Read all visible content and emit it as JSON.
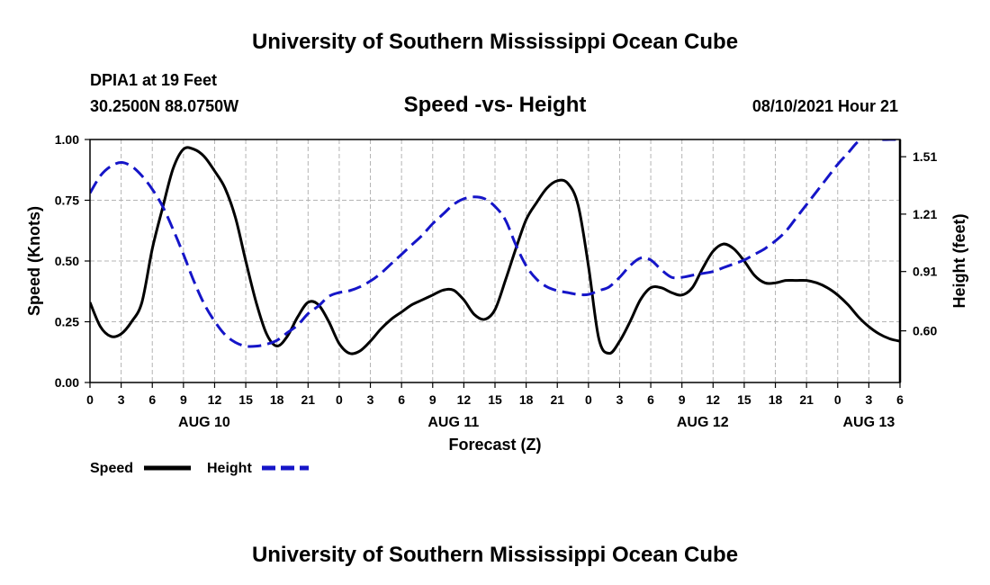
{
  "header": {
    "title": "University of Southern Mississippi Ocean Cube",
    "station": "DPIA1 at 19 Feet",
    "location": "30.2500N  88.0750W",
    "subtitle": "Speed -vs- Height",
    "datetime": "08/10/2021 Hour 21"
  },
  "footer": {
    "title": "University of Southern Mississippi Ocean Cube"
  },
  "legend": {
    "speed_label": "Speed",
    "height_label": "Height"
  },
  "colors": {
    "speed": "#000000",
    "height": "#1515c8",
    "grid": "#b4b4b4"
  },
  "chart_data": {
    "type": "line",
    "title": "Speed -vs- Height",
    "xlabel": "Forecast (Z)",
    "ylabel": "Speed (Knots)",
    "y2label": "Height (feet)",
    "xlim": [
      0,
      78
    ],
    "ylim": [
      0,
      1
    ],
    "y2lim": [
      0.33,
      1.6
    ],
    "x_ticks": [
      0,
      3,
      6,
      9,
      12,
      15,
      18,
      21,
      24,
      27,
      30,
      33,
      36,
      39,
      42,
      45,
      48,
      51,
      54,
      57,
      60,
      63,
      66,
      69,
      72,
      75,
      78
    ],
    "x_tick_labels": [
      "0",
      "3",
      "6",
      "9",
      "12",
      "15",
      "18",
      "21",
      "0",
      "3",
      "6",
      "9",
      "12",
      "15",
      "18",
      "21",
      "0",
      "3",
      "6",
      "9",
      "12",
      "15",
      "18",
      "21",
      "0",
      "3",
      "6"
    ],
    "day_labels": [
      {
        "x": 11,
        "label": "AUG 10"
      },
      {
        "x": 35,
        "label": "AUG 11"
      },
      {
        "x": 59,
        "label": "AUG 12"
      },
      {
        "x": 75,
        "label": "AUG 13"
      }
    ],
    "y_ticks": [
      0,
      0.25,
      0.5,
      0.75,
      1
    ],
    "y_tick_labels": [
      "0.00",
      "0.25",
      "0.50",
      "0.75",
      "1.00"
    ],
    "y2_ticks": [
      0.6,
      0.91,
      1.21,
      1.51
    ],
    "y2_tick_labels": [
      "0.60",
      "0.91",
      "1.21",
      "1.51"
    ],
    "grid": true,
    "series": [
      {
        "name": "Speed",
        "axis": "left",
        "style": "solid",
        "x": [
          0,
          1,
          2,
          3,
          4,
          5,
          6,
          7,
          8,
          9,
          10,
          11,
          12,
          13,
          14,
          15,
          16,
          17,
          18,
          19,
          20,
          21,
          22,
          23,
          24,
          25,
          26,
          27,
          28,
          29,
          30,
          31,
          32,
          33,
          34,
          35,
          36,
          37,
          38,
          39,
          40,
          41,
          42,
          43,
          44,
          45,
          46,
          47,
          48,
          49,
          50,
          51,
          52,
          53,
          54,
          55,
          56,
          57,
          58,
          59,
          60,
          61,
          62,
          63,
          64,
          65,
          66,
          67,
          68,
          69,
          70,
          71,
          72,
          73,
          74,
          75,
          76,
          77,
          78
        ],
        "values": [
          0.33,
          0.23,
          0.19,
          0.2,
          0.25,
          0.33,
          0.55,
          0.72,
          0.88,
          0.96,
          0.96,
          0.93,
          0.87,
          0.8,
          0.68,
          0.5,
          0.33,
          0.2,
          0.15,
          0.19,
          0.27,
          0.33,
          0.32,
          0.25,
          0.16,
          0.12,
          0.13,
          0.17,
          0.22,
          0.26,
          0.29,
          0.32,
          0.34,
          0.36,
          0.38,
          0.38,
          0.34,
          0.28,
          0.26,
          0.3,
          0.42,
          0.55,
          0.67,
          0.74,
          0.8,
          0.83,
          0.82,
          0.73,
          0.48,
          0.18,
          0.12,
          0.17,
          0.25,
          0.34,
          0.39,
          0.39,
          0.37,
          0.36,
          0.39,
          0.47,
          0.54,
          0.57,
          0.55,
          0.5,
          0.44,
          0.41,
          0.41,
          0.42,
          0.42,
          0.42,
          0.41,
          0.39,
          0.36,
          0.32,
          0.27,
          0.23,
          0.2,
          0.18,
          0.17
        ]
      },
      {
        "name": "Height",
        "axis": "right",
        "style": "dashed",
        "x": [
          0,
          1,
          2,
          3,
          4,
          5,
          6,
          7,
          8,
          9,
          10,
          11,
          12,
          13,
          14,
          15,
          16,
          17,
          18,
          19,
          20,
          21,
          22,
          23,
          24,
          25,
          26,
          27,
          28,
          29,
          30,
          31,
          32,
          33,
          34,
          35,
          36,
          37,
          38,
          39,
          40,
          41,
          42,
          43,
          44,
          45,
          46,
          47,
          48,
          49,
          50,
          51,
          52,
          53,
          54,
          55,
          56,
          57,
          58,
          59,
          60,
          61,
          62,
          63,
          64,
          65,
          66,
          67,
          68,
          69,
          70,
          71,
          72,
          73,
          74,
          75,
          76,
          77,
          78
        ],
        "values": [
          1.32,
          1.41,
          1.46,
          1.48,
          1.46,
          1.41,
          1.34,
          1.25,
          1.13,
          1.0,
          0.86,
          0.74,
          0.65,
          0.58,
          0.54,
          0.52,
          0.52,
          0.53,
          0.55,
          0.59,
          0.63,
          0.69,
          0.73,
          0.78,
          0.8,
          0.81,
          0.83,
          0.86,
          0.9,
          0.95,
          1.0,
          1.05,
          1.1,
          1.16,
          1.21,
          1.26,
          1.29,
          1.3,
          1.29,
          1.25,
          1.18,
          1.05,
          0.94,
          0.87,
          0.83,
          0.81,
          0.8,
          0.79,
          0.79,
          0.81,
          0.83,
          0.88,
          0.94,
          0.98,
          0.97,
          0.92,
          0.88,
          0.88,
          0.89,
          0.9,
          0.91,
          0.93,
          0.95,
          0.97,
          1.0,
          1.03,
          1.07,
          1.12,
          1.19,
          1.26,
          1.33,
          1.4,
          1.47,
          1.53,
          1.59,
          1.61,
          1.6,
          1.6,
          1.6
        ]
      }
    ]
  }
}
